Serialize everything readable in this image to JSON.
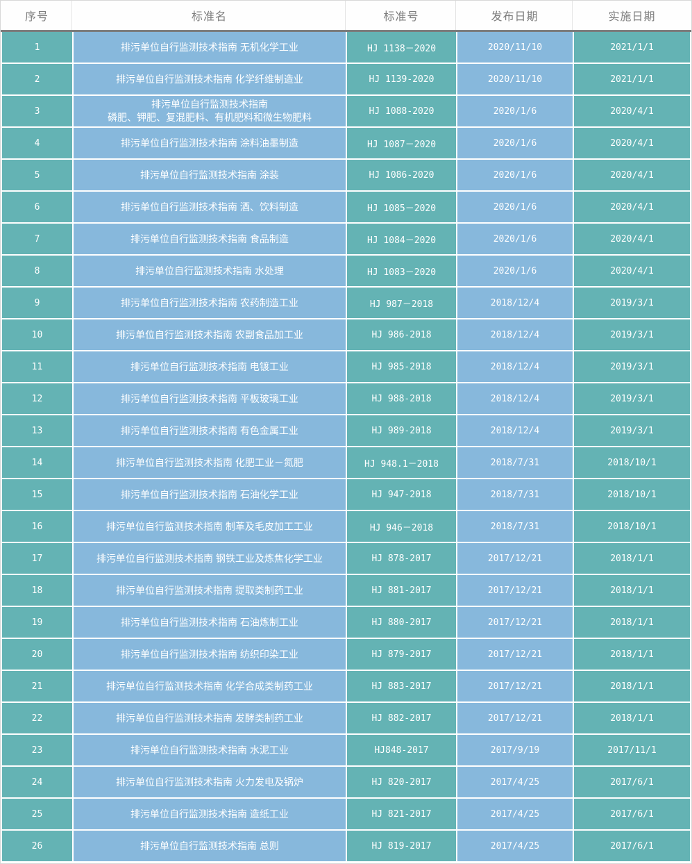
{
  "table": {
    "columns": [
      {
        "key": "index",
        "label": "序号"
      },
      {
        "key": "name",
        "label": "标准名"
      },
      {
        "key": "code",
        "label": "标准号"
      },
      {
        "key": "publish_date",
        "label": "发布日期"
      },
      {
        "key": "implement_date",
        "label": "实施日期"
      }
    ],
    "rows": [
      {
        "index": "1",
        "name": "排污单位自行监测技术指南 无机化学工业",
        "code": "HJ 1138－2020",
        "publish_date": "2020/11/10",
        "implement_date": "2021/1/1"
      },
      {
        "index": "2",
        "name": "排污单位自行监测技术指南 化学纤维制造业",
        "code": "HJ 1139-2020",
        "publish_date": "2020/11/10",
        "implement_date": "2021/1/1"
      },
      {
        "index": "3",
        "name": "排污单位自行监测技术指南\n磷肥、钾肥、复混肥料、有机肥料和微生物肥料",
        "code": "HJ 1088-2020",
        "publish_date": "2020/1/6",
        "implement_date": "2020/4/1"
      },
      {
        "index": "4",
        "name": "排污单位自行监测技术指南 涂料油墨制造",
        "code": "HJ 1087－2020",
        "publish_date": "2020/1/6",
        "implement_date": "2020/4/1"
      },
      {
        "index": "5",
        "name": "排污单位自行监测技术指南 涂装",
        "code": "HJ 1086-2020",
        "publish_date": "2020/1/6",
        "implement_date": "2020/4/1"
      },
      {
        "index": "6",
        "name": "排污单位自行监测技术指南 酒、饮料制造",
        "code": "HJ 1085－2020",
        "publish_date": "2020/1/6",
        "implement_date": "2020/4/1"
      },
      {
        "index": "7",
        "name": "排污单位自行监测技术指南 食品制造",
        "code": "HJ 1084－2020",
        "publish_date": "2020/1/6",
        "implement_date": "2020/4/1"
      },
      {
        "index": "8",
        "name": "排污单位自行监测技术指南 水处理",
        "code": "HJ 1083－2020",
        "publish_date": "2020/1/6",
        "implement_date": "2020/4/1"
      },
      {
        "index": "9",
        "name": "排污单位自行监测技术指南 农药制造工业",
        "code": "HJ 987－2018",
        "publish_date": "2018/12/4",
        "implement_date": "2019/3/1"
      },
      {
        "index": "10",
        "name": "排污单位自行监测技术指南 农副食品加工业",
        "code": "HJ 986-2018",
        "publish_date": "2018/12/4",
        "implement_date": "2019/3/1"
      },
      {
        "index": "11",
        "name": "排污单位自行监测技术指南 电镀工业",
        "code": "HJ 985-2018",
        "publish_date": "2018/12/4",
        "implement_date": "2019/3/1"
      },
      {
        "index": "12",
        "name": "排污单位自行监测技术指南 平板玻璃工业",
        "code": "HJ 988-2018",
        "publish_date": "2018/12/4",
        "implement_date": "2019/3/1"
      },
      {
        "index": "13",
        "name": "排污单位自行监测技术指南 有色金属工业",
        "code": "HJ 989-2018",
        "publish_date": "2018/12/4",
        "implement_date": "2019/3/1"
      },
      {
        "index": "14",
        "name": "排污单位自行监测技术指南 化肥工业－氮肥",
        "code": "HJ 948.1－2018",
        "publish_date": "2018/7/31",
        "implement_date": "2018/10/1"
      },
      {
        "index": "15",
        "name": "排污单位自行监测技术指南 石油化学工业",
        "code": "HJ 947-2018",
        "publish_date": "2018/7/31",
        "implement_date": "2018/10/1"
      },
      {
        "index": "16",
        "name": "排污单位自行监测技术指南 制革及毛皮加工工业",
        "code": "HJ 946－2018",
        "publish_date": "2018/7/31",
        "implement_date": "2018/10/1"
      },
      {
        "index": "17",
        "name": "排污单位自行监测技术指南 钢铁工业及炼焦化学工业",
        "code": "HJ 878-2017",
        "publish_date": "2017/12/21",
        "implement_date": "2018/1/1"
      },
      {
        "index": "18",
        "name": "排污单位自行监测技术指南 提取类制药工业",
        "code": "HJ 881-2017",
        "publish_date": "2017/12/21",
        "implement_date": "2018/1/1"
      },
      {
        "index": "19",
        "name": "排污单位自行监测技术指南 石油炼制工业",
        "code": "HJ 880-2017",
        "publish_date": "2017/12/21",
        "implement_date": "2018/1/1"
      },
      {
        "index": "20",
        "name": "排污单位自行监测技术指南 纺织印染工业",
        "code": "HJ 879-2017",
        "publish_date": "2017/12/21",
        "implement_date": "2018/1/1"
      },
      {
        "index": "21",
        "name": "排污单位自行监测技术指南 化学合成类制药工业",
        "code": "HJ 883-2017",
        "publish_date": "2017/12/21",
        "implement_date": "2018/1/1"
      },
      {
        "index": "22",
        "name": "排污单位自行监测技术指南 发酵类制药工业",
        "code": "HJ 882-2017",
        "publish_date": "2017/12/21",
        "implement_date": "2018/1/1"
      },
      {
        "index": "23",
        "name": "排污单位自行监测技术指南 水泥工业",
        "code": "HJ848-2017",
        "publish_date": "2017/9/19",
        "implement_date": "2017/11/1"
      },
      {
        "index": "24",
        "name": "排污单位自行监测技术指南 火力发电及锅炉",
        "code": "HJ 820-2017",
        "publish_date": "2017/4/25",
        "implement_date": "2017/6/1"
      },
      {
        "index": "25",
        "name": "排污单位自行监测技术指南 造纸工业",
        "code": "HJ 821-2017",
        "publish_date": "2017/4/25",
        "implement_date": "2017/6/1"
      },
      {
        "index": "26",
        "name": "排污单位自行监测技术指南 总则",
        "code": "HJ 819-2017",
        "publish_date": "2017/4/25",
        "implement_date": "2017/6/1"
      }
    ]
  },
  "colors": {
    "teal_cell": "#64B3B4",
    "blue_cell": "#87B8DC",
    "header_text": "#7E7E7E",
    "header_divider": "#7C7C7C",
    "data_text": "#FFFFFF"
  }
}
